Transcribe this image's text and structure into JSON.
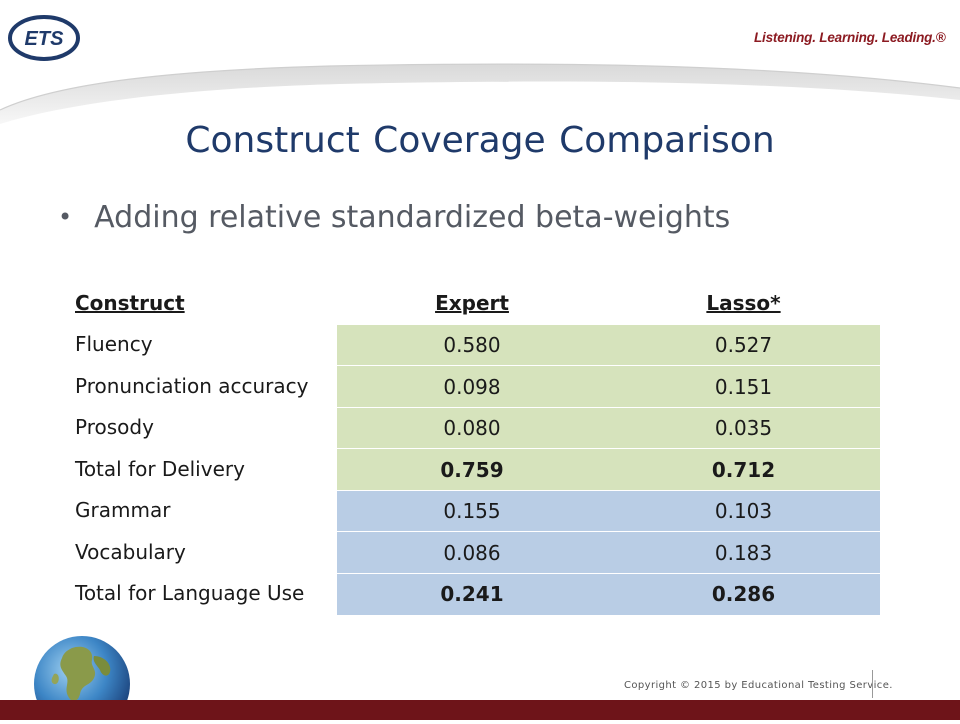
{
  "header": {
    "logo_text": "ETS",
    "tagline": "Listening. Learning. Leading.®"
  },
  "slide": {
    "title": "Construct  Coverage Comparison",
    "bullet": "Adding relative standardized beta-weights"
  },
  "table": {
    "headers": {
      "construct": "Construct",
      "expert": "Expert",
      "lasso": "Lasso*"
    },
    "rows": [
      {
        "construct": "Fluency",
        "expert": "0.580",
        "lasso": "0.527",
        "group": "delivery"
      },
      {
        "construct": "Pronunciation accuracy",
        "expert": "0.098",
        "lasso": "0.151",
        "group": "delivery"
      },
      {
        "construct": "Prosody",
        "expert": "0.080",
        "lasso": "0.035",
        "group": "delivery"
      },
      {
        "construct": "Total for Delivery",
        "expert": "0.759",
        "lasso": "0.712",
        "group": "delivery",
        "total": true
      },
      {
        "construct": "Grammar",
        "expert": "0.155",
        "lasso": "0.103",
        "group": "language"
      },
      {
        "construct": "Vocabulary",
        "expert": "0.086",
        "lasso": "0.183",
        "group": "language"
      },
      {
        "construct": "Total for Language Use",
        "expert": "0.241",
        "lasso": "0.286",
        "group": "language",
        "total": true
      }
    ]
  },
  "footer": {
    "copyright": "Copyright © 2015 by Educational Testing Service."
  },
  "colors": {
    "title": "#1f3a6a",
    "delivery_fill": "#d6e3bc",
    "language_fill": "#b9cde5",
    "brand_red": "#8c1b22",
    "footer_bar": "#6e1419"
  }
}
